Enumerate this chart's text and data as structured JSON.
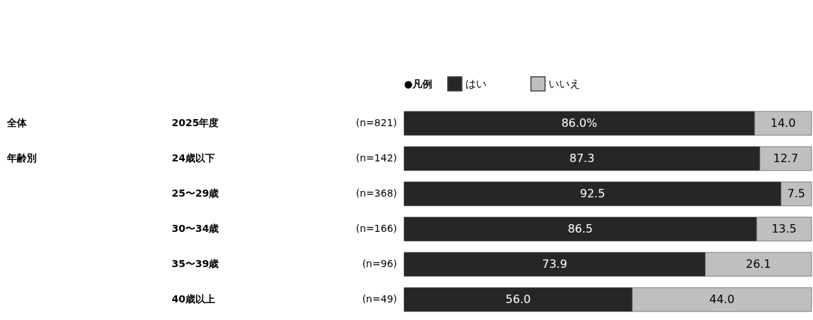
{
  "chart_data": {
    "type": "bar",
    "orientation": "horizontal",
    "stacked": true,
    "legend": "top",
    "legend_title": "●凡例",
    "categories": [
      "2025年度",
      "24歳以下",
      "25〜29歳",
      "30〜34歳",
      "35〜39歳",
      "40歳以上"
    ],
    "series": [
      {
        "name": "はい",
        "color": "#262626",
        "values": [
          86.0,
          87.3,
          92.5,
          86.5,
          73.9,
          56.0
        ],
        "value_labels": [
          "86.0%",
          "87.3",
          "92.5",
          "86.5",
          "73.9",
          "56.0"
        ]
      },
      {
        "name": "いいえ",
        "color": "#bfbfbf",
        "values": [
          14.0,
          12.7,
          7.5,
          13.5,
          26.1,
          44.0
        ],
        "value_labels": [
          "14.0",
          "12.7",
          "7.5",
          "13.5",
          "26.1",
          "44.0"
        ]
      }
    ],
    "annotations": [
      "(n=821)",
      "(n=142)",
      "(n=368)",
      "(n=166)",
      "(n=96)",
      "(n=49)",
      "全体",
      "年齢別"
    ]
  }
}
